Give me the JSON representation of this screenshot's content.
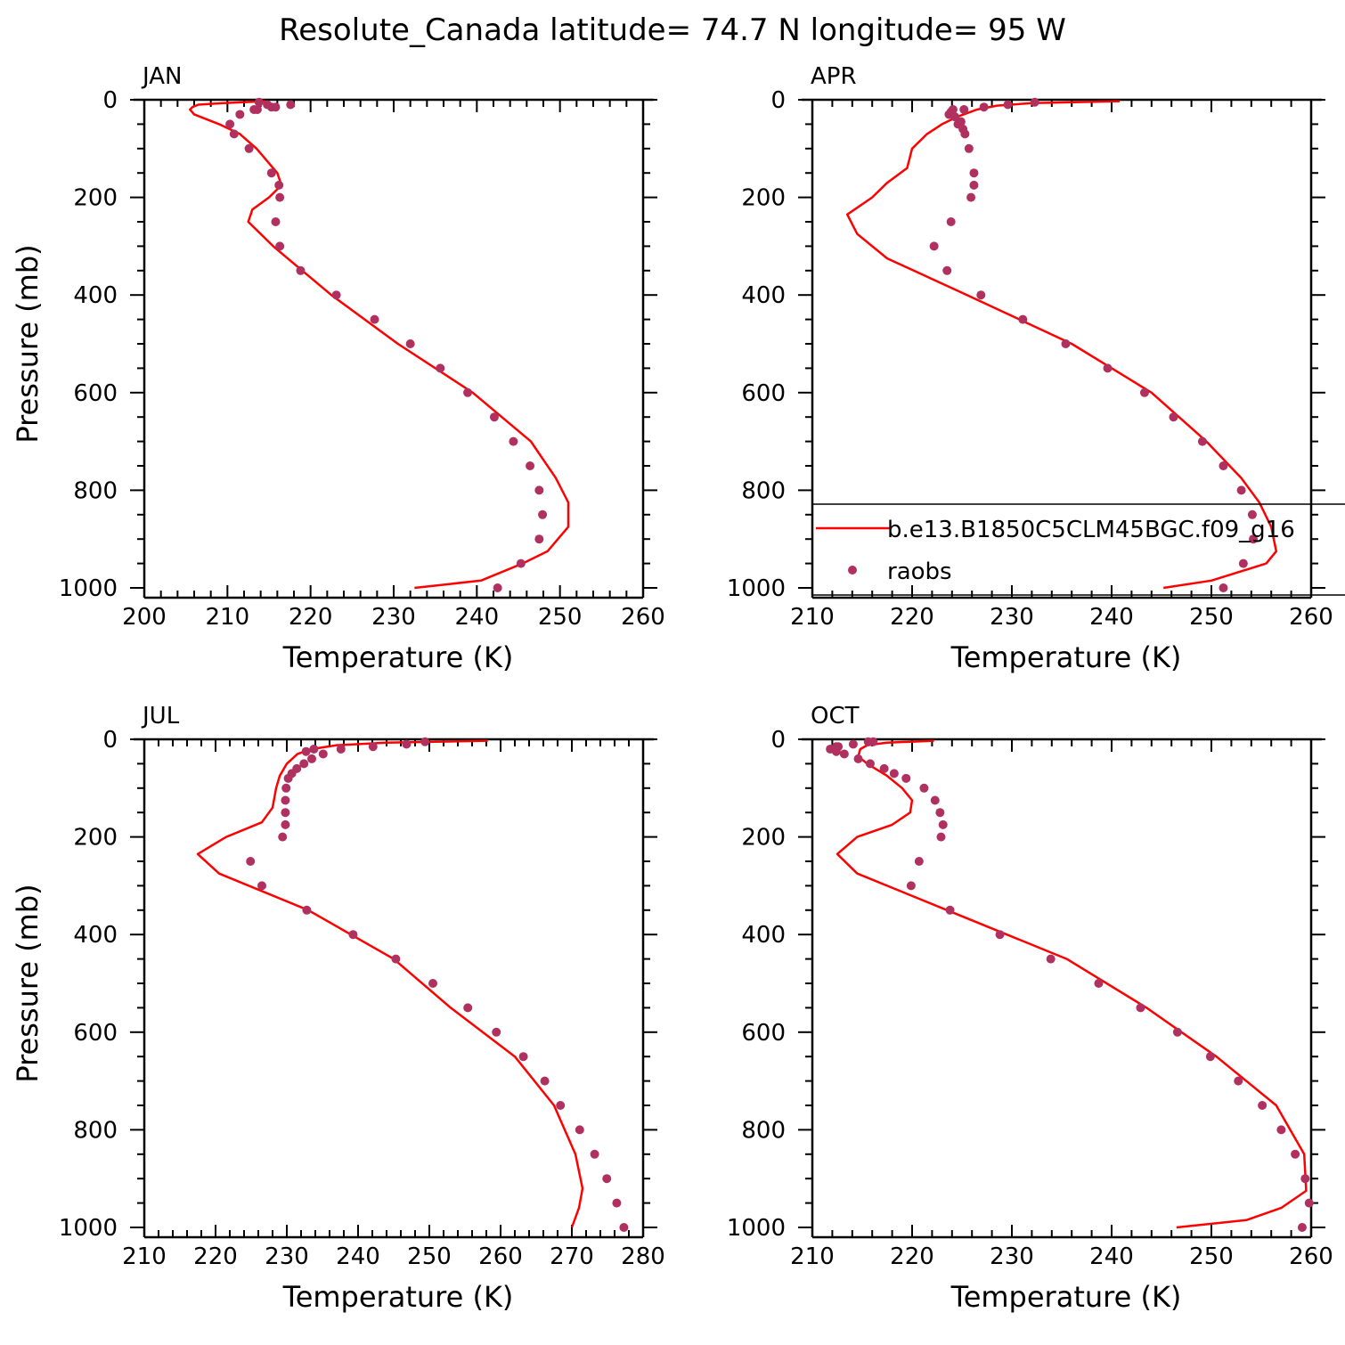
{
  "title": "Resolute_Canada  latitude= 74.7 N longitude= 95 W",
  "legend": {
    "placement": "inside APR panel, lower",
    "model_label": "b.e13.B1850C5CLM45BGC.f09_g16",
    "obs_label": "raobs"
  },
  "colors": {
    "model": "#ff0000",
    "obs": "#b03060",
    "axes": "#000000"
  },
  "chart_data": [
    {
      "type": "line",
      "panel_title": "JAN",
      "xlabel": "Temperature (K)",
      "ylabel": "Pressure (mb)",
      "xlim": [
        200,
        260
      ],
      "ylim": [
        1000,
        0
      ],
      "xticks": [
        200,
        210,
        220,
        230,
        240,
        250,
        260
      ],
      "yticks": [
        0,
        200,
        400,
        600,
        800,
        1000
      ],
      "series": [
        {
          "kind": "line",
          "p": [
            3,
            7,
            10,
            15,
            20,
            30,
            50,
            70,
            100,
            150,
            175,
            200,
            225,
            250,
            300,
            350,
            400,
            500,
            600,
            700,
            775,
            825,
            875,
            925,
            950,
            985,
            1000
          ],
          "t": [
            214.5,
            209.5,
            206.5,
            205.8,
            205.5,
            206,
            209,
            211.5,
            213.5,
            216,
            216.5,
            215,
            213,
            212.5,
            215.5,
            219,
            222.5,
            230.5,
            239.5,
            246.5,
            249.5,
            251,
            251,
            248.5,
            245.5,
            240.5,
            232.5
          ]
        },
        {
          "kind": "points",
          "p": [
            10,
            15,
            20,
            30,
            50,
            70,
            100,
            150,
            175,
            200,
            250,
            300,
            350,
            400,
            450,
            500,
            550,
            600,
            650,
            700,
            750,
            800,
            850,
            900,
            950,
            1000
          ],
          "t": [
            217.6,
            215.8,
            213.6,
            211.5,
            210.3,
            210.8,
            212.6,
            215.3,
            216.2,
            216.3,
            215.8,
            216.3,
            218.8,
            223.1,
            227.7,
            232,
            235.6,
            238.9,
            242.1,
            244.4,
            246.4,
            247.5,
            247.9,
            247.5,
            245.3,
            242.5
          ],
          "t_extra": [
            [
              5,
              213.8
            ],
            [
              10,
              214.8
            ],
            [
              15,
              215.3
            ],
            [
              20,
              213.2
            ]
          ]
        }
      ]
    },
    {
      "type": "line",
      "panel_title": "APR",
      "xlabel": "Temperature (K)",
      "ylabel": "",
      "xlim": [
        210,
        260
      ],
      "ylim": [
        1000,
        0
      ],
      "xticks": [
        210,
        220,
        230,
        240,
        250,
        260
      ],
      "yticks": [
        0,
        200,
        400,
        600,
        800,
        1000
      ],
      "series": [
        {
          "kind": "line",
          "p": [
            3,
            7,
            12,
            20,
            35,
            50,
            70,
            100,
            140,
            170,
            200,
            235,
            275,
            325,
            400,
            500,
            600,
            700,
            775,
            825,
            875,
            925,
            950,
            985,
            1000
          ],
          "t": [
            240.8,
            232,
            228.5,
            226.5,
            224.5,
            223,
            221.5,
            220,
            219.5,
            217.5,
            216,
            213.5,
            214.5,
            217.5,
            225.5,
            236,
            244,
            249.5,
            253,
            254.8,
            256,
            256.5,
            255.5,
            250,
            245.2
          ]
        },
        {
          "kind": "points",
          "p": [
            5,
            10,
            15,
            20,
            30,
            50,
            70,
            100,
            150,
            175,
            200,
            250,
            300,
            350,
            400,
            450,
            500,
            550,
            600,
            650,
            700,
            750,
            800,
            850,
            900,
            950,
            1000
          ],
          "t": [
            232.3,
            229.6,
            227.2,
            225.2,
            223.7,
            224.6,
            225.3,
            225.7,
            226.2,
            226.2,
            225.9,
            223.9,
            222.2,
            223.5,
            226.9,
            231.1,
            235.4,
            239.6,
            243.3,
            246.2,
            249.1,
            251.2,
            253,
            254.1,
            254.2,
            253.2,
            251.2
          ],
          "t_extra": [
            [
              20,
              224.1
            ],
            [
              25,
              223.9
            ],
            [
              35,
              224.3
            ],
            [
              45,
              224.9
            ],
            [
              60,
              225.1
            ]
          ]
        }
      ]
    },
    {
      "type": "line",
      "panel_title": "JUL",
      "xlabel": "Temperature (K)",
      "ylabel": "Pressure (mb)",
      "xlim": [
        210,
        280
      ],
      "ylim": [
        1000,
        0
      ],
      "xticks": [
        210,
        220,
        230,
        240,
        250,
        260,
        270,
        280
      ],
      "yticks": [
        0,
        200,
        400,
        600,
        800,
        1000
      ],
      "series": [
        {
          "kind": "line",
          "p": [
            3,
            7,
            12,
            20,
            30,
            50,
            75,
            100,
            140,
            170,
            200,
            235,
            275,
            350,
            450,
            550,
            650,
            750,
            850,
            920,
            960,
            1000
          ],
          "t": [
            258.2,
            244,
            237,
            233.5,
            231.5,
            230,
            229,
            228.5,
            228,
            226.5,
            221.5,
            217.5,
            220.5,
            233,
            245,
            253,
            262,
            267.5,
            270.5,
            271.5,
            271,
            270
          ]
        },
        {
          "kind": "points",
          "p": [
            5,
            10,
            15,
            20,
            30,
            40,
            50,
            60,
            70,
            80,
            100,
            125,
            150,
            175,
            200,
            250,
            300,
            350,
            400,
            450,
            500,
            550,
            600,
            650,
            700,
            750,
            800,
            850,
            900,
            950,
            1000
          ],
          "t": [
            249.4,
            246.8,
            242.1,
            237.6,
            235.1,
            233.5,
            232.4,
            231.4,
            230.7,
            230.2,
            229.9,
            229.8,
            229.8,
            229.8,
            229.4,
            224.9,
            226.5,
            232.8,
            239.3,
            245.3,
            250.5,
            255.4,
            259.4,
            263.2,
            266.2,
            268.4,
            271.1,
            273.2,
            274.9,
            276.3,
            277.3
          ],
          "t_extra": [
            [
              20,
              233.8
            ],
            [
              25,
              232.7
            ]
          ]
        }
      ]
    },
    {
      "type": "line",
      "panel_title": "OCT",
      "xlabel": "Temperature (K)",
      "ylabel": "",
      "xlim": [
        210,
        260
      ],
      "ylim": [
        1000,
        0
      ],
      "xticks": [
        210,
        220,
        230,
        240,
        250,
        260
      ],
      "yticks": [
        0,
        200,
        400,
        600,
        800,
        1000
      ],
      "series": [
        {
          "kind": "line",
          "p": [
            3,
            7,
            12,
            20,
            35,
            50,
            75,
            100,
            125,
            150,
            175,
            200,
            235,
            275,
            350,
            450,
            550,
            650,
            750,
            850,
            925,
            960,
            985,
            1000
          ],
          "t": [
            222.2,
            217.5,
            215.5,
            214.8,
            214.6,
            215.5,
            217.5,
            219,
            220,
            219.8,
            218,
            214.5,
            212.5,
            214.5,
            223.5,
            235.5,
            243.5,
            250.5,
            256.5,
            259.3,
            259.5,
            257,
            253.5,
            246.5
          ]
        },
        {
          "kind": "points",
          "p": [
            5,
            10,
            15,
            20,
            25,
            30,
            40,
            50,
            60,
            70,
            80,
            100,
            125,
            150,
            175,
            200,
            250,
            300,
            350,
            400,
            450,
            500,
            550,
            600,
            650,
            700,
            750,
            800,
            850,
            900,
            950,
            1000
          ],
          "t": [
            216.1,
            214.1,
            212.6,
            211.8,
            212.4,
            213.2,
            214.6,
            215.8,
            217.2,
            218.2,
            219.4,
            221.2,
            222.3,
            222.8,
            223.1,
            222.9,
            220.7,
            219.9,
            223.8,
            228.8,
            233.9,
            238.7,
            242.9,
            246.6,
            249.9,
            252.7,
            255.1,
            257,
            258.4,
            259.4,
            259.8,
            259.1
          ],
          "t_extra": [
            [
              5,
              215.6
            ],
            [
              15,
              212.4
            ]
          ]
        }
      ]
    }
  ]
}
